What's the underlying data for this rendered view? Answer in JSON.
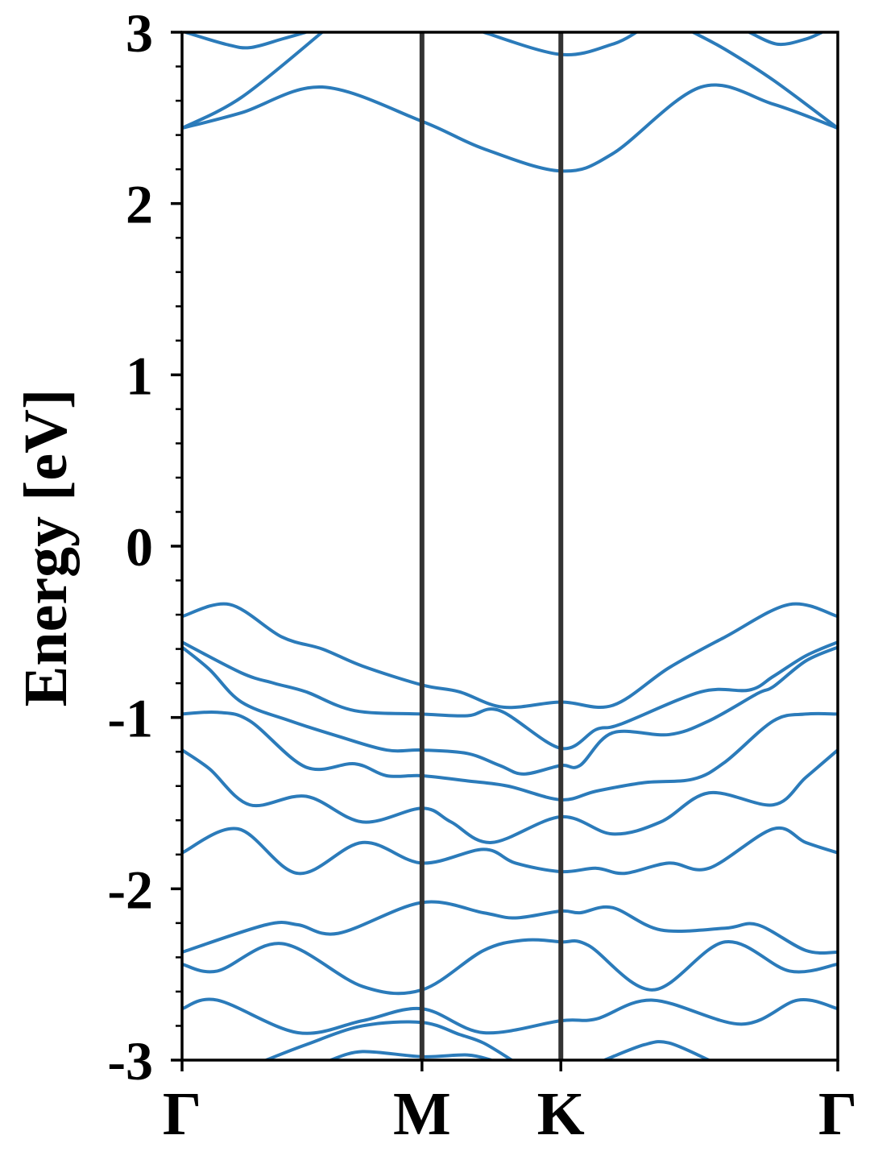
{
  "chart_data": {
    "type": "line",
    "title": "",
    "xlabel": "",
    "ylabel": "Energy [eV]",
    "ylim": [
      -3,
      3
    ],
    "yticks": [
      "-3",
      "-2",
      "-1",
      "0",
      "1",
      "2",
      "3"
    ],
    "yminor_step": 0.2,
    "xlim": [
      0,
      1.577
    ],
    "high_symmetry_points": [
      {
        "label": "Γ",
        "k": 0
      },
      {
        "label": "M",
        "k": 0.577
      },
      {
        "label": "K",
        "k": 0.911
      },
      {
        "label": "Γ",
        "k": 1.577
      }
    ],
    "band_color": "#2b7bba",
    "divider_color": "#333333",
    "grid": false,
    "bands": [
      [
        [
          0,
          -0.41
        ],
        [
          0.114,
          -0.34
        ],
        [
          0.24,
          -0.53
        ],
        [
          0.337,
          -0.6
        ],
        [
          0.434,
          -0.7
        ],
        [
          0.577,
          -0.81
        ],
        [
          0.667,
          -0.85
        ],
        [
          0.773,
          -0.94
        ],
        [
          0.911,
          -0.91
        ],
        [
          1.035,
          -0.93
        ],
        [
          1.171,
          -0.71
        ],
        [
          1.306,
          -0.53
        ],
        [
          1.461,
          -0.34
        ],
        [
          1.577,
          -0.41
        ]
      ],
      [
        [
          0,
          -0.56
        ],
        [
          0.143,
          -0.74
        ],
        [
          0.221,
          -0.8
        ],
        [
          0.298,
          -0.85
        ],
        [
          0.415,
          -0.96
        ],
        [
          0.577,
          -0.98
        ],
        [
          0.686,
          -0.99
        ],
        [
          0.764,
          -0.96
        ],
        [
          0.911,
          -1.18
        ],
        [
          0.996,
          -1.07
        ],
        [
          1.054,
          -1.04
        ],
        [
          1.248,
          -0.85
        ],
        [
          1.364,
          -0.84
        ],
        [
          1.422,
          -0.76
        ],
        [
          1.5,
          -0.64
        ],
        [
          1.577,
          -0.56
        ]
      ],
      [
        [
          0,
          -0.59
        ],
        [
          0.066,
          -0.72
        ],
        [
          0.143,
          -0.91
        ],
        [
          0.26,
          -1.02
        ],
        [
          0.376,
          -1.11
        ],
        [
          0.492,
          -1.19
        ],
        [
          0.577,
          -1.19
        ],
        [
          0.686,
          -1.21
        ],
        [
          0.764,
          -1.28
        ],
        [
          0.822,
          -1.33
        ],
        [
          0.911,
          -1.28
        ],
        [
          0.957,
          -1.28
        ],
        [
          1.035,
          -1.09
        ],
        [
          1.171,
          -1.1
        ],
        [
          1.267,
          -1.02
        ],
        [
          1.384,
          -0.86
        ],
        [
          1.422,
          -0.82
        ],
        [
          1.5,
          -0.67
        ],
        [
          1.577,
          -0.59
        ]
      ],
      [
        [
          0,
          -0.98
        ],
        [
          0.085,
          -0.97
        ],
        [
          0.163,
          -1.02
        ],
        [
          0.298,
          -1.29
        ],
        [
          0.415,
          -1.27
        ],
        [
          0.492,
          -1.34
        ],
        [
          0.577,
          -1.34
        ],
        [
          0.686,
          -1.37
        ],
        [
          0.783,
          -1.4
        ],
        [
          0.911,
          -1.48
        ],
        [
          0.996,
          -1.43
        ],
        [
          1.112,
          -1.38
        ],
        [
          1.229,
          -1.36
        ],
        [
          1.306,
          -1.26
        ],
        [
          1.422,
          -1.02
        ],
        [
          1.5,
          -0.98
        ],
        [
          1.577,
          -0.98
        ]
      ],
      [
        [
          0,
          -1.19
        ],
        [
          0.066,
          -1.3
        ],
        [
          0.163,
          -1.51
        ],
        [
          0.298,
          -1.46
        ],
        [
          0.434,
          -1.61
        ],
        [
          0.577,
          -1.53
        ],
        [
          0.647,
          -1.61
        ],
        [
          0.744,
          -1.73
        ],
        [
          0.911,
          -1.58
        ],
        [
          1.035,
          -1.68
        ],
        [
          1.151,
          -1.61
        ],
        [
          1.267,
          -1.44
        ],
        [
          1.422,
          -1.51
        ],
        [
          1.5,
          -1.35
        ],
        [
          1.577,
          -1.19
        ]
      ],
      [
        [
          0,
          -1.79
        ],
        [
          0.134,
          -1.65
        ],
        [
          0.279,
          -1.91
        ],
        [
          0.434,
          -1.73
        ],
        [
          0.577,
          -1.85
        ],
        [
          0.725,
          -1.77
        ],
        [
          0.802,
          -1.85
        ],
        [
          0.911,
          -1.9
        ],
        [
          0.996,
          -1.88
        ],
        [
          1.064,
          -1.91
        ],
        [
          1.171,
          -1.85
        ],
        [
          1.267,
          -1.88
        ],
        [
          1.422,
          -1.65
        ],
        [
          1.5,
          -1.73
        ],
        [
          1.577,
          -1.79
        ]
      ],
      [
        [
          0,
          -2.37
        ],
        [
          0.202,
          -2.21
        ],
        [
          0.279,
          -2.21
        ],
        [
          0.376,
          -2.26
        ],
        [
          0.577,
          -2.08
        ],
        [
          0.725,
          -2.14
        ],
        [
          0.802,
          -2.17
        ],
        [
          0.911,
          -2.13
        ],
        [
          0.957,
          -2.14
        ],
        [
          1.035,
          -2.11
        ],
        [
          1.151,
          -2.24
        ],
        [
          1.306,
          -2.23
        ],
        [
          1.384,
          -2.21
        ],
        [
          1.5,
          -2.36
        ],
        [
          1.577,
          -2.37
        ]
      ],
      [
        [
          0,
          -2.44
        ],
        [
          0.085,
          -2.48
        ],
        [
          0.24,
          -2.32
        ],
        [
          0.434,
          -2.57
        ],
        [
          0.577,
          -2.59
        ],
        [
          0.725,
          -2.36
        ],
        [
          0.822,
          -2.3
        ],
        [
          0.911,
          -2.31
        ],
        [
          0.977,
          -2.33
        ],
        [
          1.132,
          -2.59
        ],
        [
          1.306,
          -2.31
        ],
        [
          1.461,
          -2.48
        ],
        [
          1.577,
          -2.44
        ]
      ],
      [
        [
          0,
          -2.7
        ],
        [
          0.085,
          -2.65
        ],
        [
          0.279,
          -2.84
        ],
        [
          0.434,
          -2.77
        ],
        [
          0.577,
          -2.7
        ],
        [
          0.725,
          -2.84
        ],
        [
          0.911,
          -2.77
        ],
        [
          0.996,
          -2.76
        ],
        [
          1.132,
          -2.65
        ],
        [
          1.345,
          -2.79
        ],
        [
          1.481,
          -2.65
        ],
        [
          1.577,
          -2.7
        ]
      ],
      [
        [
          0.202,
          -3.0
        ],
        [
          0.298,
          -2.91
        ],
        [
          0.434,
          -2.8
        ],
        [
          0.577,
          -2.78
        ],
        [
          0.667,
          -2.85
        ],
        [
          0.725,
          -2.9
        ],
        [
          0.793,
          -3.0
        ]
      ],
      [
        [
          0.357,
          -3.0
        ],
        [
          0.434,
          -2.95
        ],
        [
          0.577,
          -2.98
        ],
        [
          0.686,
          -2.97
        ],
        [
          0.744,
          -3.0
        ]
      ],
      [
        [
          1.016,
          -3.0
        ],
        [
          1.112,
          -2.91
        ],
        [
          1.171,
          -2.9
        ],
        [
          1.267,
          -3.0
        ]
      ],
      [
        [
          0,
          2.44
        ],
        [
          0.143,
          2.53
        ],
        [
          0.337,
          2.68
        ],
        [
          0.577,
          2.48
        ],
        [
          0.725,
          2.32
        ],
        [
          0.911,
          2.19
        ],
        [
          1.035,
          2.29
        ],
        [
          1.248,
          2.68
        ],
        [
          1.422,
          2.58
        ],
        [
          1.577,
          2.44
        ]
      ],
      [
        [
          0,
          2.44
        ],
        [
          0.143,
          2.62
        ],
        [
          0.337,
          3.0
        ]
      ],
      [
        [
          1.577,
          2.44
        ],
        [
          1.422,
          2.72
        ],
        [
          1.306,
          2.9
        ],
        [
          1.229,
          3.0
        ]
      ],
      [
        [
          0.008,
          3.0
        ],
        [
          0.105,
          2.93
        ],
        [
          0.163,
          2.91
        ],
        [
          0.24,
          2.96
        ],
        [
          0.298,
          3.0
        ]
      ],
      [
        [
          0.725,
          3.0
        ],
        [
          0.911,
          2.87
        ],
        [
          1.035,
          2.93
        ],
        [
          1.093,
          3.0
        ]
      ],
      [
        [
          1.364,
          3.0
        ],
        [
          1.432,
          2.93
        ],
        [
          1.5,
          2.96
        ],
        [
          1.539,
          3.0
        ]
      ]
    ]
  }
}
